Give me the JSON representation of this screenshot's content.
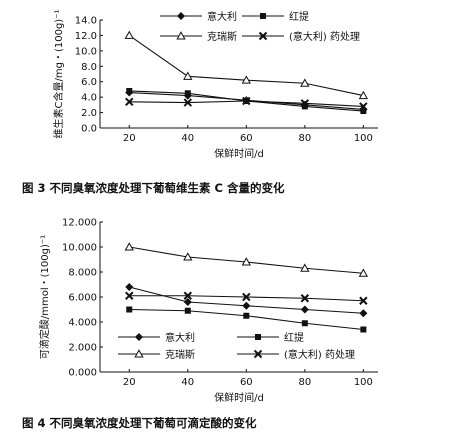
{
  "chart_data": [
    {
      "type": "line",
      "title": "",
      "caption": "图 3   不同臭氧浓度处理下葡萄维生素 C 含量的变化",
      "xlabel": "保鲜时间/d",
      "ylabel": "维生素C含量/mg・(100g)⁻¹",
      "x": [
        20,
        40,
        60,
        80,
        100
      ],
      "xlim": [
        10,
        105
      ],
      "ylim": [
        0,
        14
      ],
      "yticks": [
        "0.0",
        "2.0",
        "4.0",
        "6.0",
        "8.0",
        "10.0",
        "12.0",
        "14.0"
      ],
      "xticks": [
        "20",
        "40",
        "60",
        "80",
        "100"
      ],
      "legend_position": "top-right",
      "series": [
        {
          "name": "意大利",
          "marker": "diamond",
          "values": [
            4.6,
            4.2,
            3.6,
            3.0,
            2.4
          ]
        },
        {
          "name": "红提",
          "marker": "square",
          "values": [
            4.8,
            4.5,
            3.5,
            2.8,
            2.2
          ]
        },
        {
          "name": "克瑞斯",
          "marker": "triangle",
          "values": [
            12.0,
            6.7,
            6.2,
            5.8,
            4.2
          ]
        },
        {
          "name": "(意大利) 药处理",
          "marker": "cross",
          "values": [
            3.4,
            3.3,
            3.5,
            3.2,
            2.8
          ]
        }
      ]
    },
    {
      "type": "line",
      "title": "",
      "caption": "图 4   不同臭氧浓度处理下葡萄可滴定酸的变化",
      "xlabel": "保鲜时间/d",
      "ylabel": "可滴定酸/mmol・(100g)⁻¹",
      "x": [
        20,
        40,
        60,
        80,
        100
      ],
      "xlim": [
        10,
        105
      ],
      "ylim": [
        0,
        12
      ],
      "yticks": [
        "0.000",
        "2.000",
        "4.000",
        "6.000",
        "8.000",
        "10.000",
        "12.000"
      ],
      "xticks": [
        "20",
        "40",
        "60",
        "80",
        "100"
      ],
      "legend_position": "bottom",
      "series": [
        {
          "name": "意大利",
          "marker": "diamond",
          "values": [
            6.8,
            5.6,
            5.3,
            5.0,
            4.7
          ]
        },
        {
          "name": "红提",
          "marker": "square",
          "values": [
            5.0,
            4.9,
            4.5,
            3.9,
            3.4
          ]
        },
        {
          "name": "克瑞斯",
          "marker": "triangle",
          "values": [
            10.0,
            9.2,
            8.8,
            8.3,
            7.9
          ]
        },
        {
          "name": "(意大利) 药处理",
          "marker": "cross",
          "values": [
            6.1,
            6.1,
            6.0,
            5.9,
            5.7
          ]
        }
      ]
    }
  ]
}
